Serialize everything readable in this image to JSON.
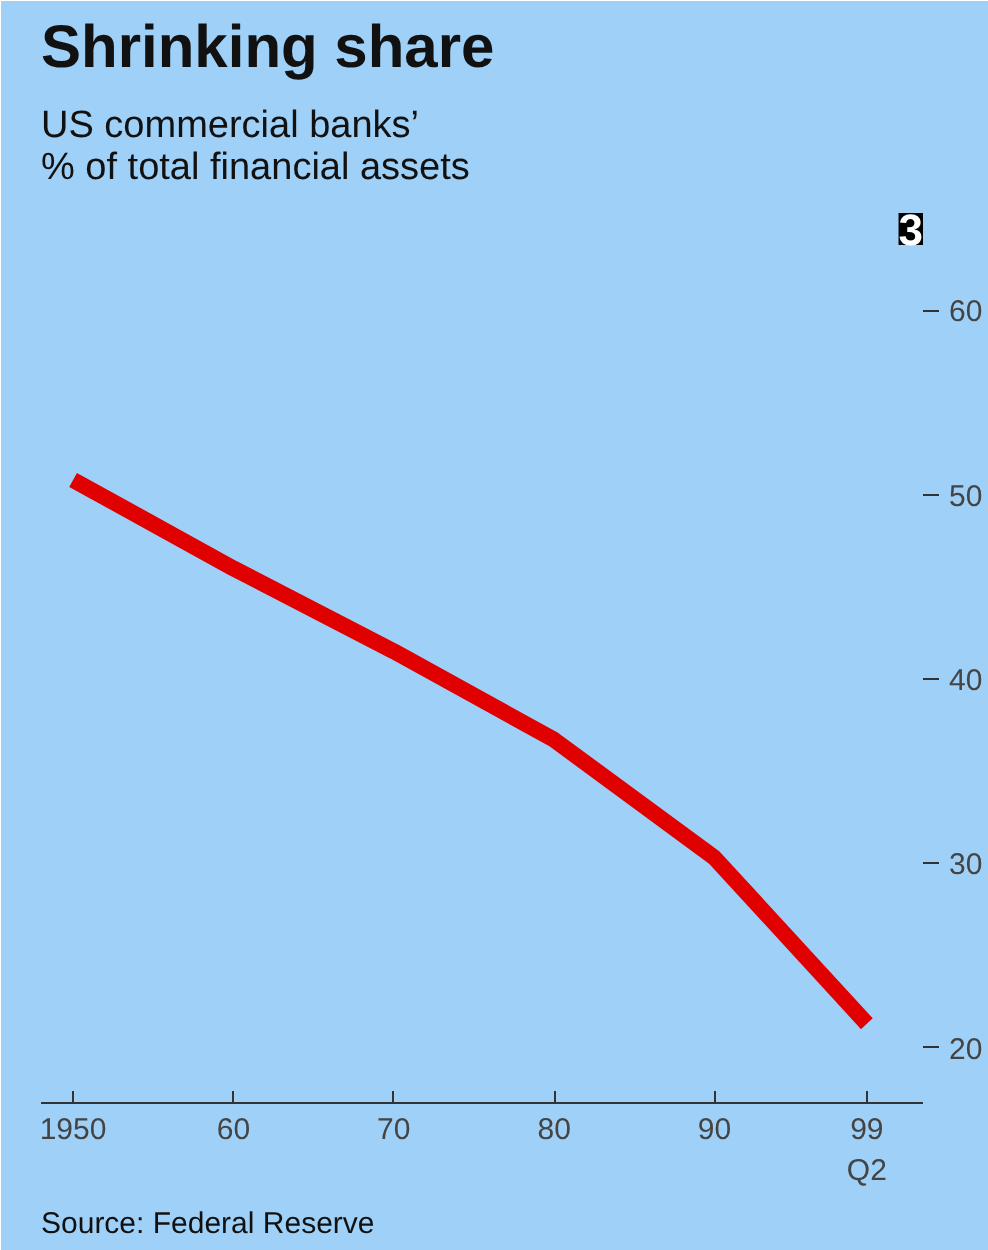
{
  "chart_data": {
    "type": "line",
    "title": "Shrinking share",
    "subtitle": "US commercial banks’\n% of total financial assets",
    "x": [
      1950,
      1960,
      1970,
      1980,
      1990,
      1999.5
    ],
    "series": [
      {
        "color": "#e00000",
        "values": [
          50.8,
          46,
          41.5,
          36.7,
          30.3,
          21.3
        ]
      }
    ],
    "xlim": [
      1948,
      2003
    ],
    "xticks": [
      1950,
      {
        "value": 1960,
        "label": "60"
      },
      {
        "value": 1970,
        "label": "70"
      },
      {
        "value": 1980,
        "label": "80"
      },
      {
        "value": 1990,
        "label": "90"
      },
      {
        "value": 1999.5,
        "label": "99\nQ2"
      }
    ],
    "ylim": [
      17,
      63
    ],
    "yticks": [
      20,
      30,
      40,
      50,
      60
    ],
    "line_style": "solid",
    "annotations": [
      "3",
      "Source: Federal Reserve"
    ]
  }
}
